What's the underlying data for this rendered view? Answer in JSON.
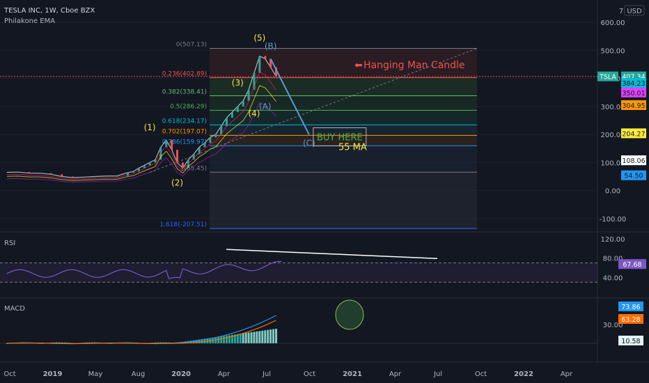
{
  "header": {
    "symbol_line": "TESLA INC, 1W, Cboe BZX",
    "indicator": "Philakone EMA",
    "currency": "USD",
    "currency_prefix": "7"
  },
  "colors": {
    "bg": "#131722",
    "grid": "#1e222d",
    "up": "#26a69a",
    "down": "#ef5350",
    "text": "#b2b5be",
    "fib_box": "#787b86",
    "wave": "#f5e542",
    "rsi": "#7e57c2",
    "macd_line": "#2196f3",
    "signal_line": "#ff6d00"
  },
  "chart_data": [
    {
      "type": "line",
      "title": "TESLA INC, 1W, Cboe BZX",
      "xaxis_ticks": [
        "Oct",
        "2019",
        "May",
        "Aug",
        "2020",
        "Apr",
        "Jul",
        "Oct",
        "2021",
        "Apr",
        "Jul",
        "Oct",
        "2022",
        "Apr"
      ],
      "yaxis_ticks": [
        600,
        500,
        400,
        300,
        200,
        100,
        0,
        -100
      ],
      "ylim": [
        -140,
        660
      ],
      "price_series": {
        "name": "TSLA",
        "x": [
          0,
          4,
          8,
          12,
          16,
          20,
          24,
          28,
          32,
          36,
          40,
          44,
          46,
          48,
          50,
          52,
          54,
          56,
          58,
          60,
          62,
          64,
          66,
          68,
          70,
          72,
          74,
          76,
          78,
          80,
          82,
          84,
          86,
          88,
          90,
          92,
          94,
          96,
          98
        ],
        "y": [
          65,
          66,
          62,
          62,
          58,
          50,
          46,
          48,
          50,
          52,
          52,
          64,
          68,
          80,
          90,
          100,
          110,
          155,
          180,
          145,
          100,
          80,
          110,
          130,
          155,
          170,
          190,
          200,
          230,
          260,
          280,
          300,
          320,
          360,
          420,
          480,
          470,
          440,
          407
        ]
      },
      "price_labels": [
        "407.34",
        "384.23",
        "350.01",
        "304.95",
        "204.27",
        "108.06",
        "54.50"
      ],
      "fib_levels": [
        {
          "label": "0(507.13)",
          "value": 507.13
        },
        {
          "label": "0.236(402.89)",
          "value": 402.89
        },
        {
          "label": "0.382(338.41)",
          "value": 338.41
        },
        {
          "label": "0.5(286.29)",
          "value": 286.29
        },
        {
          "label": "0.618(234.17)",
          "value": 234.17
        },
        {
          "label": "0.702(197.07)",
          "value": 197.07
        },
        {
          "label": "0.786(159.97)",
          "value": 159.97
        },
        {
          "label": "1(65.45)",
          "value": 65.45
        },
        {
          "label": "1.618(-207.51)",
          "value": -207.51
        }
      ],
      "annotations": {
        "waves": [
          "(1)",
          "(2)",
          "(3)",
          "(4)",
          "(5)"
        ],
        "corrective": [
          "(A)",
          "(B)",
          "(C)"
        ],
        "hanging_man": "Hanging Man Candle",
        "buy_here": "BUY HERE",
        "ma_label": "55 MA"
      }
    },
    {
      "type": "line",
      "title": "RSI",
      "yaxis_ticks": [
        120,
        80,
        40
      ],
      "value_label": "67.68"
    },
    {
      "type": "bar",
      "title": "MACD",
      "yaxis_ticks": [
        30
      ],
      "value_labels": [
        "73.86",
        "63.28",
        "10.58"
      ]
    }
  ]
}
